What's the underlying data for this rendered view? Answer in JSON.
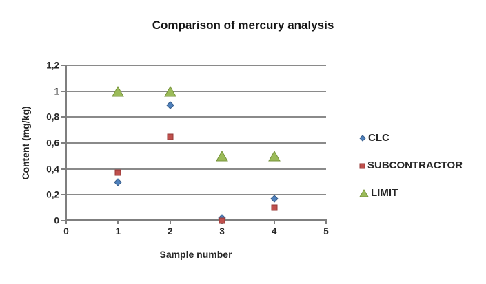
{
  "chart_data": {
    "type": "scatter",
    "title": "Comparison of mercury analysis",
    "xlabel": "Sample number",
    "ylabel": "Content (mg/kg)",
    "xlim": [
      0,
      5
    ],
    "ylim": [
      0,
      1.2
    ],
    "grid": "horizontal",
    "legend_position": "right",
    "background": "#ffffff",
    "grid_color": "#8a8a8a",
    "axis_color": "#7f7f7f",
    "text_color": "#262626",
    "xticks": {
      "values": [
        0,
        1,
        2,
        3,
        4,
        5
      ],
      "labels": [
        "0",
        "1",
        "2",
        "3",
        "4",
        "5"
      ]
    },
    "yticks": {
      "values": [
        0,
        0.2,
        0.4,
        0.6,
        0.8,
        1,
        1.2
      ],
      "labels": [
        "0",
        "0,2",
        "0,4",
        "0,6",
        "0,8",
        "1",
        "1,2"
      ]
    },
    "x": [
      1,
      2,
      3,
      4
    ],
    "series": [
      {
        "name": "CLC",
        "marker": "diamond",
        "color": "#4F81BD",
        "edge_color": "#385D8A",
        "values": [
          0.3,
          0.89,
          0.02,
          0.17
        ]
      },
      {
        "name": "SUBCONTRACTOR",
        "marker": "square",
        "color": "#C0504D",
        "edge_color": "#953735",
        "values": [
          0.37,
          0.65,
          0.0,
          0.1
        ]
      },
      {
        "name": "LIMIT",
        "marker": "triangle",
        "color": "#9BBB59",
        "edge_color": "#77933C",
        "values": [
          1.0,
          1.0,
          0.5,
          0.5
        ]
      }
    ]
  }
}
